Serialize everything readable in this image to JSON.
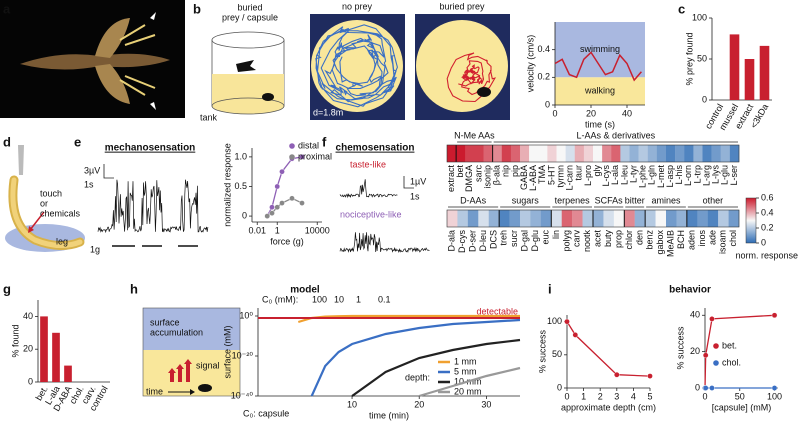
{
  "panel_labels": [
    "a",
    "b",
    "c",
    "d",
    "e",
    "f",
    "g",
    "h",
    "i"
  ],
  "b": {
    "title_lines": [
      "buried",
      "prey / capsule"
    ],
    "tank": "tank",
    "no_prey": "no prey",
    "buried_prey": "buried prey",
    "distance": "d=1.8m"
  },
  "d": {
    "stimulus_lines": [
      "touch",
      "or",
      "chemicals"
    ],
    "leg": "leg"
  },
  "e": {
    "title": "mechanosensation",
    "scale_v": "3µV",
    "scale_t": "1s",
    "force": "1g"
  },
  "f": {
    "title": "chemosensation",
    "taste": "taste-like",
    "nociceptive": "nociceptive-like",
    "scale_v": "1µV",
    "scale_t": "1s"
  },
  "h": {
    "title": "model",
    "surface_lines": [
      "surface",
      "accumulation"
    ],
    "signal": "signal",
    "time": "time"
  },
  "i": {
    "title": "behavior"
  },
  "chart_data": [
    {
      "type": "line",
      "x": [
        0,
        4,
        8,
        12,
        16,
        20,
        24,
        28,
        32,
        36,
        40,
        44,
        48
      ],
      "values": [
        0.3,
        0.33,
        0.22,
        0.2,
        0.33,
        0.38,
        0.3,
        0.22,
        0.24,
        0.36,
        0.3,
        0.18,
        0.24
      ],
      "color": "#c8202f",
      "xlim": [
        0,
        50
      ],
      "xticks": [
        0,
        20,
        40
      ],
      "ylim": [
        0,
        0.6
      ],
      "yticks": [
        0,
        0.2,
        0.4
      ],
      "xlabel": "time (s)",
      "ylabel": "velocity (cm/s)",
      "regions": [
        {
          "label": "swimming",
          "from": 0.2,
          "to": 0.6,
          "color": "#a9b8e0"
        },
        {
          "label": "walking",
          "from": 0,
          "to": 0.2,
          "color": "#f9e79b"
        }
      ]
    },
    {
      "type": "bar",
      "categories": [
        "control",
        "mussel",
        "extract",
        "<3kDa"
      ],
      "values": [
        0,
        80,
        50,
        66
      ],
      "color": "#c8202f",
      "ylim": [
        0,
        100
      ],
      "yticks": [
        0,
        50,
        100
      ],
      "ylabel": "% prey found"
    },
    {
      "type": "scatter",
      "xscale": "log",
      "xlim": [
        0.003,
        30000
      ],
      "xticks": [
        0.01,
        1,
        10000
      ],
      "ylim": [
        -0.1,
        1.15
      ],
      "yticks": [
        0,
        0.5,
        {
          "value": 1,
          "label": "1.0"
        }
      ],
      "xlabel": "force (g)",
      "ylabel": "normalized response",
      "series": [
        {
          "name": "distal",
          "color": "#8e5fb5",
          "x": [
            0.1,
            0.3,
            1,
            3,
            30,
            300
          ],
          "values": [
            0,
            0.15,
            0.5,
            0.75,
            0.97,
            1.0
          ]
        },
        {
          "name": "proximal",
          "color": "#888888",
          "x": [
            0.1,
            0.3,
            1,
            3,
            30,
            300
          ],
          "values": [
            0,
            0.05,
            0.15,
            0.22,
            0.3,
            0.22
          ]
        }
      ]
    },
    {
      "type": "heatmap",
      "vlim": [
        0,
        0.6
      ],
      "colors": [
        "#2f6db5",
        "#f7f7f7",
        "#cb1b2e"
      ],
      "colorbar": {
        "ticks": [
          0,
          0.2,
          0.4,
          0.6
        ],
        "label": "norm. response"
      },
      "rows": [
        {
          "groups": [
            {
              "items": [
                "extract"
              ],
              "values": [
                0.6
              ]
            },
            {
              "label": "N-Me AAs",
              "items": [
                "bet",
                "DMGA",
                "sarc",
                "isonip"
              ],
              "values": [
                0.6,
                0.55,
                0.55,
                0.5
              ]
            },
            {
              "label": "L-AAs & derivatives",
              "items": [
                "β-ala",
                "nip",
                "pip",
                "GABA",
                "L-ABA",
                "TMA",
                "5-HT",
                "tyrmn",
                "L-carn",
                "taur",
                "L-pro",
                "gly",
                "L-cys",
                "L-ala",
                "L-leu",
                "L-tyr",
                "L-phe",
                "L-gln",
                "L-met",
                "L-asp",
                "L-his",
                "L-orn",
                "L-trp",
                "L-arg",
                "L-lys",
                "L-glu",
                "L-ser"
              ],
              "values": [
                0.45,
                0.55,
                0.5,
                0.4,
                0.3,
                0.3,
                0.35,
                0.3,
                0.25,
                0.4,
                0.35,
                0.3,
                0.45,
                0.5,
                0.2,
                0.15,
                0.2,
                0.15,
                0.1,
                0.05,
                0.1,
                0.05,
                0.15,
                0.05,
                0.1,
                0.15,
                0.05
              ]
            }
          ]
        },
        {
          "groups": [
            {
              "label": "D-AAs",
              "items": [
                "D-ala",
                "D-cys",
                "D-ser",
                "D-leu",
                "DCS"
              ],
              "values": [
                0.35,
                0.2,
                0.1,
                0.25,
                0.15
              ]
            },
            {
              "label": "sugars",
              "items": [
                "treh",
                "sucr",
                "D-gal",
                "D-glu",
                "euc"
              ],
              "values": [
                0.05,
                0.1,
                0.2,
                0.15,
                0.1
              ]
            },
            {
              "label": "terpenes",
              "items": [
                "lin",
                "polyg",
                "carv",
                "nootk"
              ],
              "values": [
                0.25,
                0.5,
                0.45,
                0.2
              ]
            },
            {
              "label": "SCFAs",
              "items": [
                "acet",
                "buty",
                "prop"
              ],
              "values": [
                0.15,
                0.25,
                0.3
              ]
            },
            {
              "label": "bitter",
              "items": [
                "chlor",
                "den"
              ],
              "values": [
                0.45,
                0.15
              ]
            },
            {
              "label": "amines",
              "items": [
                "benz",
                "gabox",
                "MeAIB",
                "BCH"
              ],
              "values": [
                0.2,
                0.3,
                0.1,
                0.15
              ]
            },
            {
              "label": "other",
              "items": [
                "aden",
                "inos",
                "ade",
                "isoam",
                "chol"
              ],
              "values": [
                0.05,
                0.1,
                0.05,
                0.2,
                0.1
              ]
            }
          ]
        }
      ]
    },
    {
      "type": "bar",
      "categories": [
        "bet.",
        "L-ala",
        "D-ABA",
        "chol.",
        "carv.",
        "control"
      ],
      "values": [
        40,
        30,
        10,
        0,
        0,
        0
      ],
      "color": "#c8202f",
      "ylim": [
        0,
        50
      ],
      "yticks": [
        0,
        20,
        40
      ],
      "ylabel": "% found"
    },
    {
      "type": "line",
      "yscale": "log",
      "xlim": [
        -4,
        35
      ],
      "xticks": [
        10,
        20,
        30
      ],
      "ylim": [
        1e-40,
        10000.0
      ],
      "yticks": [
        {
          "value": 1,
          "label": "10⁰"
        },
        {
          "value": 1e-20,
          "label": "10⁻²⁰"
        },
        {
          "value": 1e-40,
          "label": "10⁻⁴⁰"
        }
      ],
      "xlabel": "time (min)",
      "ylabel": "surface (mM)",
      "legend_title": "depth:",
      "c0_title": "C₀ (mM):",
      "c0_values": [
        100,
        10,
        1,
        0.1
      ],
      "capsule_label": "C₀: capsule",
      "threshold": {
        "label": "detectable",
        "value": 0.1,
        "color": "#c8202f"
      },
      "x": [
        0,
        2,
        4,
        6,
        8,
        10,
        15,
        20,
        25,
        30,
        35
      ],
      "series": [
        {
          "name": "1 mm",
          "color": "#f0a030",
          "values": [
            null,
            0.001,
            0.1,
            0.5,
            0.8,
            1,
            1,
            1,
            1,
            1,
            1
          ]
        },
        {
          "name": "5 mm",
          "color": "#3a6fc4",
          "values": [
            null,
            null,
            1e-40,
            1e-25,
            1e-18,
            1e-14,
            1e-09,
            1e-06,
            0.0001,
            0.001,
            0.01
          ]
        },
        {
          "name": "10 mm",
          "color": "#222222",
          "values": [
            null,
            null,
            null,
            null,
            null,
            1e-40,
            1e-28,
            1e-21,
            1e-17,
            1e-14,
            1e-12
          ]
        },
        {
          "name": "20 mm",
          "color": "#999999",
          "values": [
            null,
            null,
            null,
            null,
            null,
            null,
            null,
            1e-40,
            1e-35,
            1e-30,
            1e-26
          ]
        }
      ]
    },
    {
      "type": "scatter",
      "xlim": [
        0,
        5
      ],
      "xticks": [
        0,
        1,
        2,
        3,
        4,
        5
      ],
      "ylim": [
        0,
        110
      ],
      "yticks": [
        0,
        50,
        100
      ],
      "xlabel": "approximate depth (cm)",
      "ylabel": "% success",
      "series": [
        {
          "color": "#c8202f",
          "x": [
            0,
            0.5,
            3,
            5
          ],
          "values": [
            100,
            80,
            20,
            18
          ]
        }
      ]
    },
    {
      "type": "scatter",
      "xlim": [
        0,
        105
      ],
      "xticks": [
        0,
        50,
        100
      ],
      "ylim": [
        0,
        44
      ],
      "yticks": [
        0,
        20,
        40
      ],
      "xlabel": "[capsule] (mM)",
      "ylabel": "% success",
      "series": [
        {
          "name": "bet.",
          "color": "#c8202f",
          "x": [
            0,
            1,
            10,
            100
          ],
          "values": [
            0,
            18,
            38,
            40
          ]
        },
        {
          "name": "chol.",
          "color": "#3a6fc4",
          "x": [
            0,
            1,
            10,
            100
          ],
          "values": [
            0,
            0,
            0,
            0
          ]
        }
      ]
    }
  ]
}
